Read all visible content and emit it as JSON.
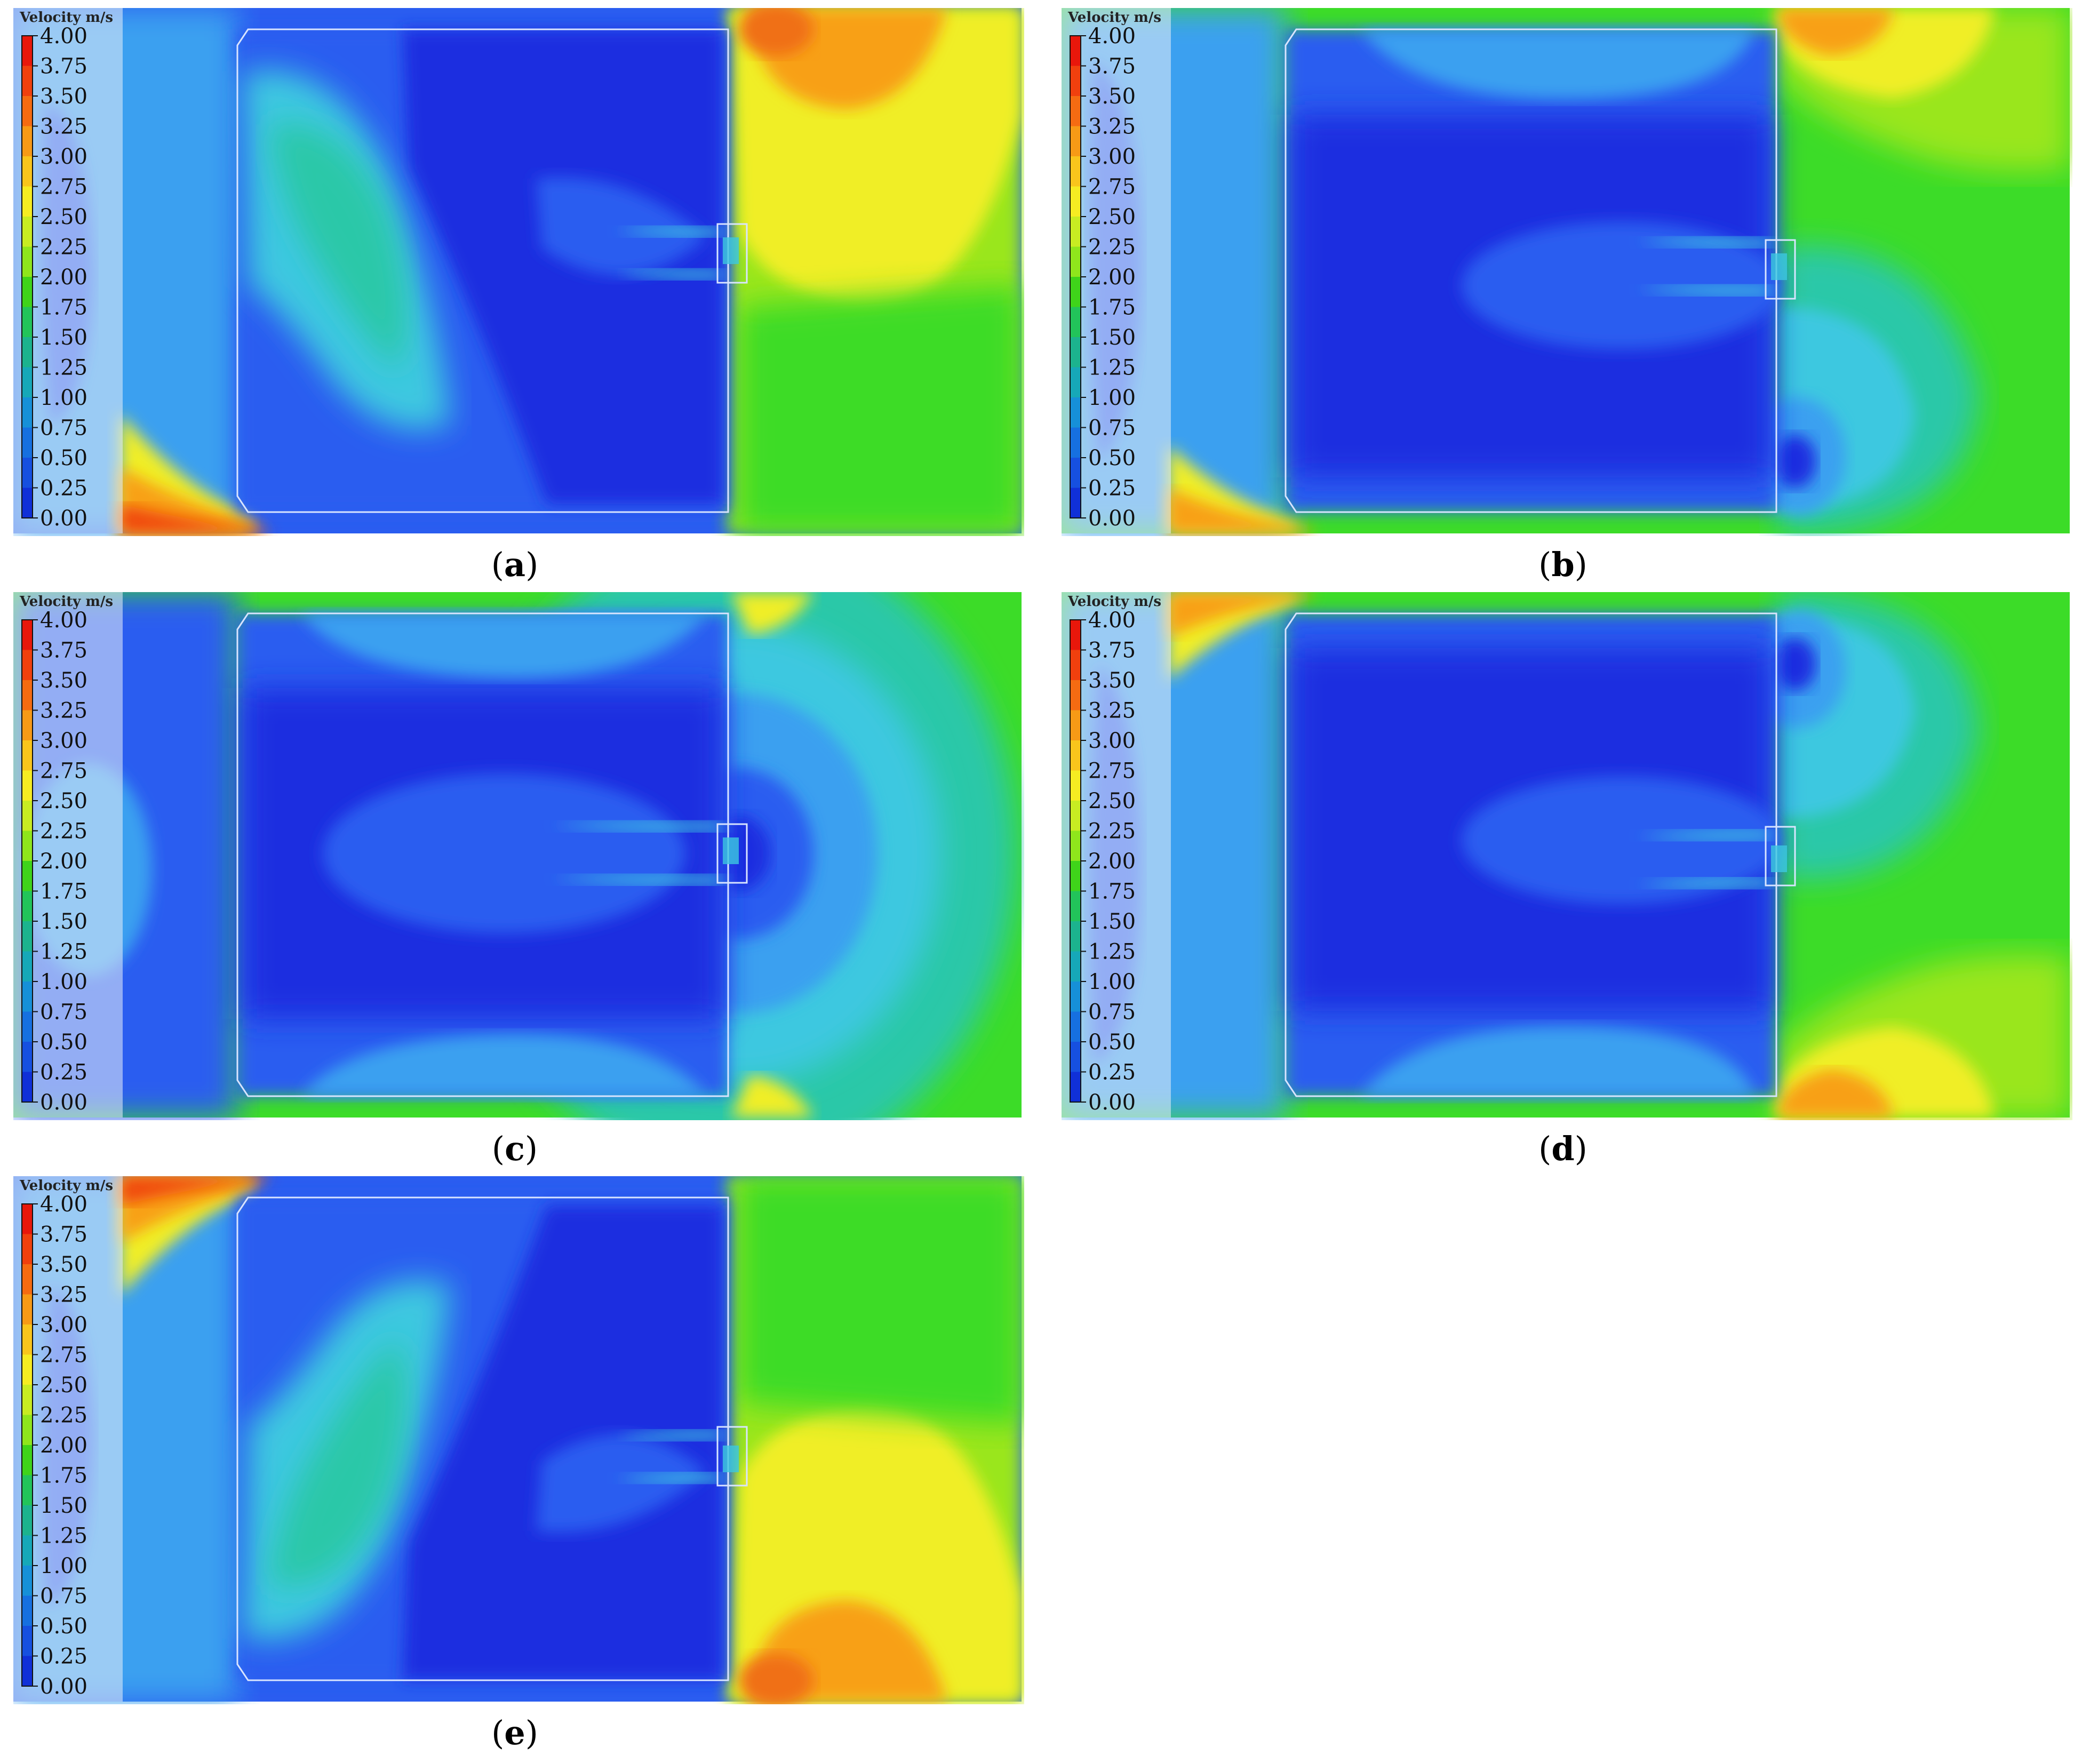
{
  "legend": {
    "title": "Velocity  m/s",
    "ticks": [
      "4.00",
      "3.75",
      "3.50",
      "3.25",
      "3.00",
      "2.75",
      "2.50",
      "2.25",
      "2.00",
      "1.75",
      "1.50",
      "1.25",
      "1.00",
      "0.75",
      "0.50",
      "0.25",
      "0.00"
    ],
    "colors": [
      "#e8170b",
      "#f0400e",
      "#f56b12",
      "#f79a16",
      "#f9c51c",
      "#f6ec22",
      "#c8ec22",
      "#8fe61c",
      "#3fd41a",
      "#22c45a",
      "#1cb38e",
      "#16a8b8",
      "#1690d8",
      "#1670e0",
      "#1650e0",
      "#1030d8",
      "#0a0ac8"
    ]
  },
  "panels": [
    {
      "id": "a",
      "label": "a",
      "variant": "a"
    },
    {
      "id": "b",
      "label": "b",
      "variant": "b"
    },
    {
      "id": "c",
      "label": "c",
      "variant": "c"
    },
    {
      "id": "d",
      "label": "d",
      "variant": "d"
    },
    {
      "id": "e",
      "label": "e",
      "variant": "e"
    }
  ],
  "colors": {
    "deep": "#1a2fe0",
    "blue": "#2a5df0",
    "light_blue": "#3aa0f0",
    "cyan": "#3cc8e0",
    "teal": "#2ac8a8",
    "green": "#3cdc28",
    "lime": "#9ae61e",
    "yellow": "#f0ee28",
    "orange": "#f8a018",
    "red": "#f04810",
    "outline": "#d8e4ff"
  }
}
